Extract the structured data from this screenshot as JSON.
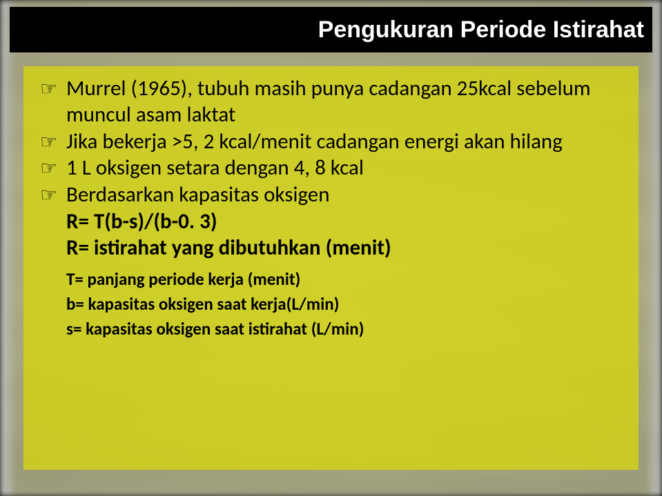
{
  "title": "Pengukuran Periode Istirahat",
  "bullets": {
    "0": "Murrel (1965), tubuh masih punya cadangan 25kcal sebelum muncul asam laktat",
    "1": "Jika bekerja >5, 2 kcal/menit cadangan energi akan hilang",
    "2": "1 L oksigen setara dengan 4, 8 kcal",
    "3": "Berdasarkan kapasitas oksigen"
  },
  "formula": {
    "line1": "R= T(b-s)/(b-0. 3)",
    "line2": "R= istirahat yang dibutuhkan (menit)"
  },
  "defs": {
    "t": "T= panjang periode kerja (menit)",
    "b": "b= kapasitas oksigen saat kerja(L/min)",
    "s": "s= kapasitas oksigen saat istirahat (L/min)"
  },
  "icon": "☞",
  "colors": {
    "title_bg": "#000000",
    "title_text": "#ffffff",
    "box_bg": "rgba(214,214,15,0.78)",
    "text": "#000000"
  }
}
